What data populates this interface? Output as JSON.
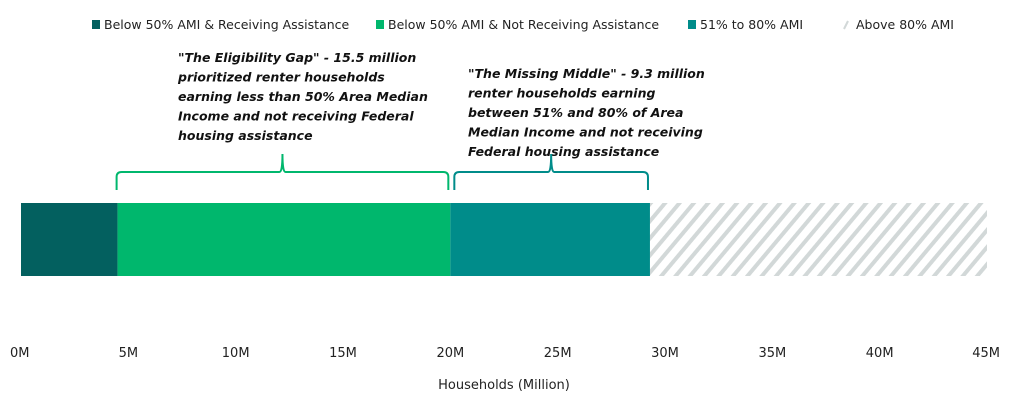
{
  "chart_data": {
    "type": "bar",
    "orientation": "horizontal-stacked",
    "xlabel": "Households (Million)",
    "xlim": [
      0,
      45
    ],
    "ticks": [
      "0M",
      "5M",
      "10M",
      "15M",
      "20M",
      "25M",
      "30M",
      "35M",
      "40M",
      "45M"
    ],
    "tick_values": [
      0,
      5,
      10,
      15,
      20,
      25,
      30,
      35,
      40,
      45
    ],
    "legend_position": "top",
    "series": [
      {
        "name": "Below 50% AMI & Receiving Assistance",
        "start": 0,
        "end": 4.5,
        "color": "#03605f",
        "pattern": "solid"
      },
      {
        "name": "Below 50% AMI & Not Receiving Assistance",
        "start": 4.5,
        "end": 20,
        "color": "#00b76d",
        "pattern": "solid"
      },
      {
        "name": "51% to 80% AMI",
        "start": 20,
        "end": 29.3,
        "color": "#008c8a",
        "pattern": "solid"
      },
      {
        "name": "Above 80% AMI",
        "start": 29.3,
        "end": 45,
        "color": "#d2d8d8",
        "pattern": "hatch"
      }
    ],
    "annotations": [
      {
        "lines": [
          "\"The Eligibility Gap\" - 15.5 million",
          "prioritized renter households",
          "earning less than 50% Area Median",
          "Income and not receiving Federal",
          "housing assistance"
        ],
        "from": 4.5,
        "to": 20,
        "color": "#00b76d"
      },
      {
        "lines": [
          "\"The Missing Middle\" - 9.3 million",
          "renter households earning",
          "between 51% and 80% of Area",
          "Median Income and not receiving",
          "Federal housing assistance"
        ],
        "from": 20,
        "to": 29.3,
        "color": "#008c8a"
      }
    ]
  }
}
